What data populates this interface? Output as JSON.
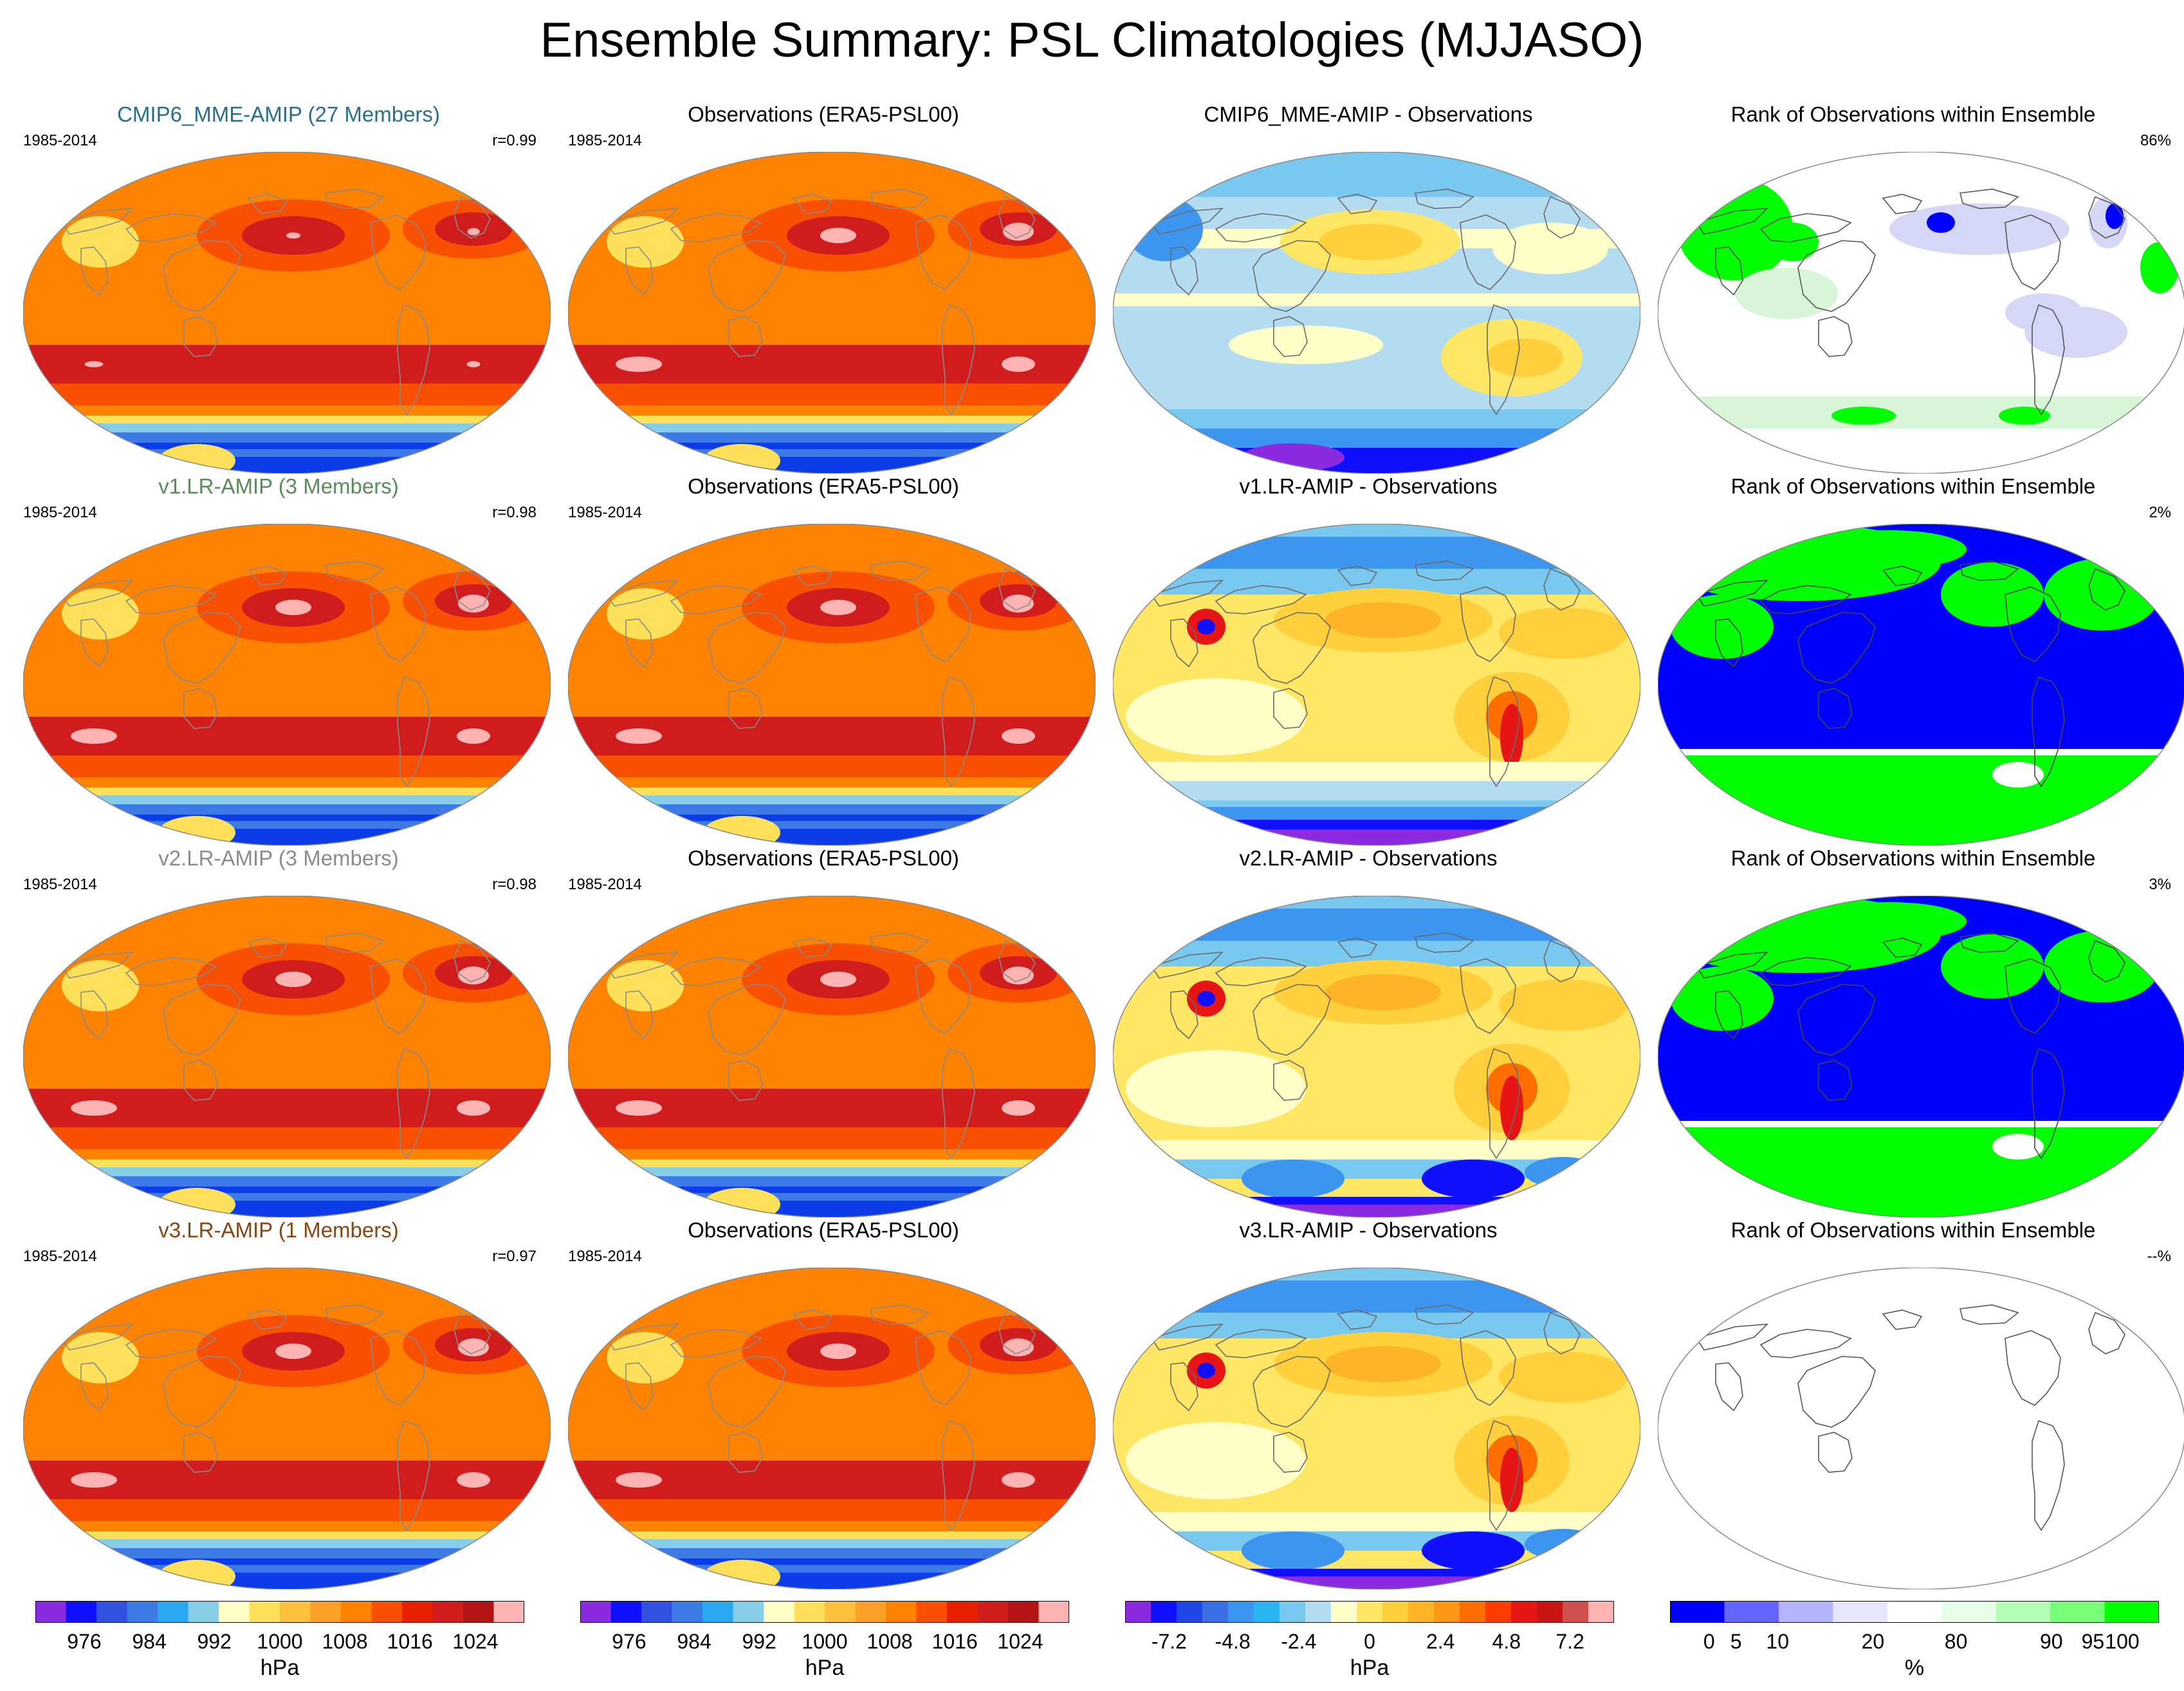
{
  "figure": {
    "title": "Ensemble Summary: PSL Climatologies (MJJASO)"
  },
  "rows": [
    {
      "model": {
        "title": "CMIP6_MME-AMIP (27 Members)",
        "title_color": "#2a6f8a",
        "period": "1985-2014",
        "corr": "r=0.99",
        "variant": 0
      },
      "obs": {
        "title": "Observations (ERA5-PSL00)",
        "period": "1985-2014"
      },
      "diff": {
        "title": "CMIP6_MME-AMIP - Observations",
        "variant": 0
      },
      "rank": {
        "title": "Rank of Observations within Ensemble",
        "pct": "86%",
        "variant": "mixed"
      }
    },
    {
      "model": {
        "title": "v1.LR-AMIP (3 Members)",
        "title_color": "#5b8a5b",
        "period": "1985-2014",
        "corr": "r=0.98",
        "variant": 1
      },
      "obs": {
        "title": "Observations (ERA5-PSL00)",
        "period": "1985-2014"
      },
      "diff": {
        "title": "v1.LR-AMIP - Observations",
        "variant": 1
      },
      "rank": {
        "title": "Rank of Observations within Ensemble",
        "pct": "2%",
        "variant": "blue"
      }
    },
    {
      "model": {
        "title": "v2.LR-AMIP (3 Members)",
        "title_color": "#8c8c8c",
        "period": "1985-2014",
        "corr": "r=0.98",
        "variant": 2
      },
      "obs": {
        "title": "Observations (ERA5-PSL00)",
        "period": "1985-2014"
      },
      "diff": {
        "title": "v2.LR-AMIP - Observations",
        "variant": 2
      },
      "rank": {
        "title": "Rank of Observations within Ensemble",
        "pct": "3%",
        "variant": "blue"
      }
    },
    {
      "model": {
        "title": "v3.LR-AMIP (1 Members)",
        "title_color": "#8b4513",
        "period": "1985-2014",
        "corr": "r=0.97",
        "variant": 3
      },
      "obs": {
        "title": "Observations (ERA5-PSL00)",
        "period": "1985-2014"
      },
      "diff": {
        "title": "v3.LR-AMIP - Observations",
        "variant": 3
      },
      "rank": {
        "title": "Rank of Observations within Ensemble",
        "pct": "--%",
        "variant": "empty"
      }
    }
  ],
  "colorbars": [
    {
      "unit": "hPa",
      "labels": [
        "976",
        "984",
        "992",
        "1000",
        "1008",
        "1016",
        "1024"
      ],
      "colors": [
        "#8a2be2",
        "#1010ff",
        "#3050e0",
        "#3c7ae6",
        "#28a8f0",
        "#86cde8",
        "#ffffc8",
        "#ffe05a",
        "#ffc03c",
        "#ffa028",
        "#ff8200",
        "#f85000",
        "#e82000",
        "#d01c1c",
        "#b41414",
        "#ffb4b4"
      ]
    },
    {
      "unit": "hPa",
      "labels": [
        "976",
        "984",
        "992",
        "1000",
        "1008",
        "1016",
        "1024"
      ],
      "colors": [
        "#8a2be2",
        "#1010ff",
        "#3050e0",
        "#3c7ae6",
        "#28a8f0",
        "#86cde8",
        "#ffffc8",
        "#ffe05a",
        "#ffc03c",
        "#ffa028",
        "#ff8200",
        "#f85000",
        "#e82000",
        "#d01c1c",
        "#b41414",
        "#ffb4b4"
      ]
    },
    {
      "unit": "hPa",
      "labels": [
        "-7.2",
        "-4.8",
        "-2.4",
        "0",
        "2.4",
        "4.8",
        "7.2"
      ],
      "colors": [
        "#8a2be2",
        "#1010ff",
        "#2046e6",
        "#3c6ee6",
        "#3c96f0",
        "#28b4f0",
        "#78c8f0",
        "#b4dcf0",
        "#ffffc8",
        "#ffe664",
        "#ffd03c",
        "#ffb428",
        "#ff9614",
        "#ff6e00",
        "#ff3c00",
        "#e61414",
        "#c81414",
        "#d05050",
        "#ffb4b4"
      ]
    },
    {
      "unit": "%",
      "labels": [
        "0",
        "5",
        "10",
        "20",
        "80",
        "90",
        "95",
        "100"
      ],
      "colors": [
        "#0000ff",
        "#6464ff",
        "#b4b4ff",
        "#e6e6ff",
        "#ffffff",
        "#e6ffe6",
        "#b4ffb4",
        "#78ff78",
        "#00ff00"
      ]
    }
  ],
  "palettes": {
    "psl": [
      "#0c3ce8",
      "#3c7ae6",
      "#86cde8",
      "#ffe05a",
      "#ff8200",
      "#f85000",
      "#d01c1c",
      "#ffb4b4"
    ],
    "diff": [
      "#8a2be2",
      "#1010ff",
      "#3c96f0",
      "#78c8f0",
      "#b4dcf0",
      "#ffffc8",
      "#ffe664",
      "#ffd03c",
      "#ffb428",
      "#ff6e00",
      "#e61414"
    ],
    "rank": {
      "blue": "#0000ff",
      "green": "#00ff00",
      "light_green": "#d8f5d8",
      "light_blue": "#d6d6f7",
      "white": "#ffffff"
    }
  }
}
